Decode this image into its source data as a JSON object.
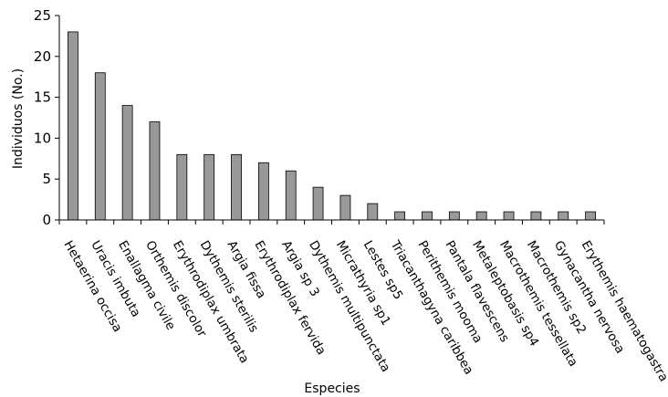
{
  "chart_data": {
    "type": "bar",
    "title": "",
    "xlabel": "Especies",
    "ylabel": "Individuos (No.)",
    "ylim": [
      0,
      25
    ],
    "yticks": [
      0,
      5,
      10,
      15,
      20,
      25
    ],
    "grid": false,
    "legend": "none",
    "bar_color": "#999999",
    "categories": [
      "Hetaerina occisa",
      "Uracis imbuta",
      "Enallagma civile",
      "Orthemis discolor",
      "Erythrodiplax umbrata",
      "Dythemis sterilis",
      "Argia fissa",
      "Erythrodiplax fervida",
      "Argia sp 3",
      "Dythemis multipunctata",
      "Micrathyria sp1",
      "Lestes sp5",
      "Triacanthagyna caribbea",
      "Perithemis mooma",
      "Pantala flavescens",
      "Metaleptobasis sp4",
      "Macrothemis tessellata",
      "Macrothemis sp2",
      "Gynacantha nervosa",
      "Erythemis haematogastra"
    ],
    "values": [
      23,
      18,
      14,
      12,
      8,
      8,
      8,
      7,
      6,
      4,
      3,
      2,
      1,
      1,
      1,
      1,
      1,
      1,
      1,
      1
    ]
  }
}
